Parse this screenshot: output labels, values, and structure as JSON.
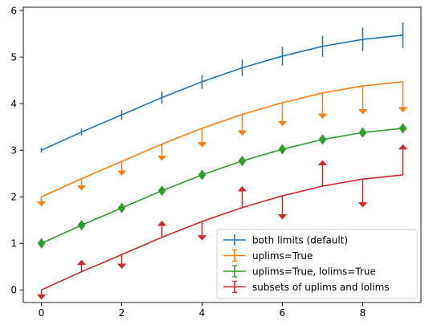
{
  "chart_data": {
    "type": "line",
    "xlim": [
      -0.45,
      9.45
    ],
    "ylim": [
      -0.27,
      6.07
    ],
    "x_ticks": [
      0,
      2,
      4,
      6,
      8
    ],
    "x_tick_labels": [
      "0",
      "2",
      "4",
      "6",
      "8"
    ],
    "y_ticks": [
      0,
      1,
      2,
      3,
      4,
      5,
      6
    ],
    "y_tick_labels": [
      "0",
      "1",
      "2",
      "3",
      "4",
      "5",
      "6"
    ],
    "grid": false,
    "legend_placement": "lower-right",
    "x": [
      0,
      1,
      2,
      3,
      4,
      5,
      6,
      7,
      8,
      9
    ],
    "series": [
      {
        "name": "both limits (default)",
        "color": "#1f77b4",
        "errorbar_style": "both",
        "values": [
          3.0,
          3.39,
          3.76,
          4.13,
          4.47,
          4.77,
          5.02,
          5.23,
          5.38,
          5.47
        ],
        "yerr": [
          0.05,
          0.075,
          0.1,
          0.125,
          0.15,
          0.175,
          0.2,
          0.225,
          0.25,
          0.275
        ]
      },
      {
        "name": "uplims=True",
        "color": "#ff7f0e",
        "errorbar_style": "uplims",
        "values": [
          2.0,
          2.39,
          2.76,
          3.13,
          3.47,
          3.77,
          4.02,
          4.23,
          4.38,
          4.47
        ],
        "yerr": [
          0.1,
          0.15,
          0.2,
          0.25,
          0.3,
          0.35,
          0.4,
          0.45,
          0.5,
          0.55
        ]
      },
      {
        "name": "uplims=True, lolims=True",
        "color": "#2ca02c",
        "errorbar_style": "both_limits",
        "values": [
          1.0,
          1.39,
          1.76,
          2.13,
          2.47,
          2.77,
          3.02,
          3.23,
          3.38,
          3.47
        ],
        "yerr": [
          0,
          0,
          0,
          0,
          0,
          0,
          0,
          0,
          0,
          0
        ]
      },
      {
        "name": "subsets of uplims and lolims",
        "color": "#d62728",
        "errorbar_style": "subsets",
        "values": [
          0.0,
          0.39,
          0.76,
          1.13,
          1.47,
          1.77,
          2.02,
          2.23,
          2.38,
          2.47
        ],
        "yerr": [
          0.1,
          0.15,
          0.2,
          0.25,
          0.3,
          0.35,
          0.4,
          0.45,
          0.5,
          0.55
        ],
        "limits": [
          "up",
          "lo",
          "up",
          "lo",
          "up",
          "lo",
          "up",
          "lo",
          "up",
          "lo"
        ]
      }
    ]
  }
}
